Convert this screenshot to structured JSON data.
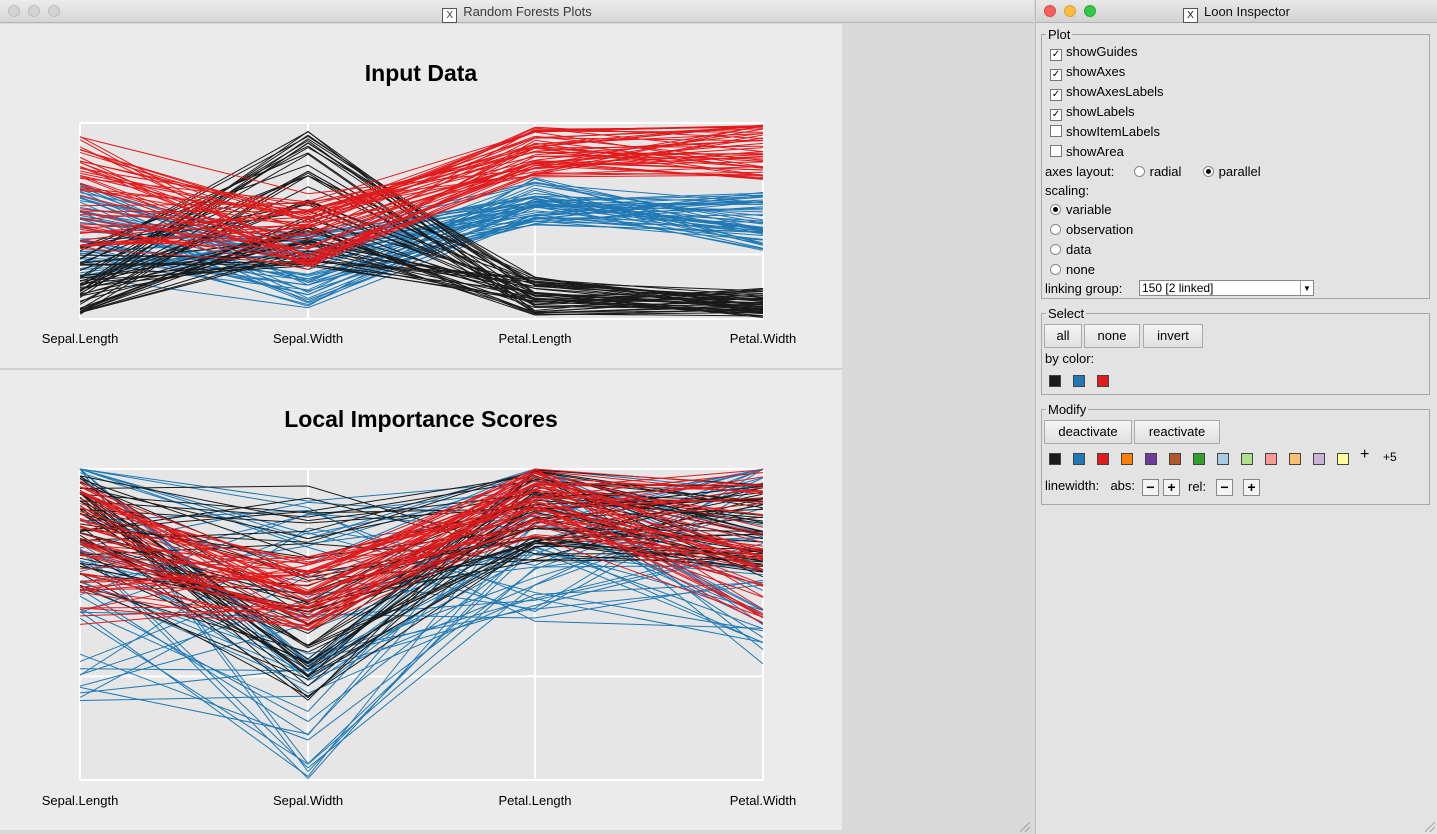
{
  "left_window": {
    "title": "Random Forests Plots",
    "top_plot": {
      "title": "Input Data",
      "axes": [
        "Sepal.Length",
        "Sepal.Width",
        "Petal.Length",
        "Petal.Width"
      ]
    },
    "bottom_plot": {
      "title": "Local Importance Scores",
      "axes": [
        "Sepal.Length",
        "Sepal.Width",
        "Petal.Length",
        "Petal.Width"
      ]
    }
  },
  "inspector": {
    "title": "Loon Inspector",
    "plot_group": {
      "label": "Plot",
      "checkboxes": [
        {
          "label": "showGuides",
          "checked": true
        },
        {
          "label": "showAxes",
          "checked": true
        },
        {
          "label": "showAxesLabels",
          "checked": true
        },
        {
          "label": "showLabels",
          "checked": true
        },
        {
          "label": "showItemLabels",
          "checked": false
        },
        {
          "label": "showArea",
          "checked": false
        }
      ],
      "axes_layout_label": "axes layout:",
      "axes_layout_options": [
        {
          "label": "radial",
          "selected": false
        },
        {
          "label": "parallel",
          "selected": true
        }
      ],
      "scaling_label": "scaling:",
      "scaling_options": [
        {
          "label": "variable",
          "selected": true
        },
        {
          "label": "observation",
          "selected": false
        },
        {
          "label": "data",
          "selected": false
        },
        {
          "label": "none",
          "selected": false
        }
      ],
      "linking_group_label": "linking group:",
      "linking_group_value": "150  [2 linked]"
    },
    "select_group": {
      "label": "Select",
      "buttons": [
        "all",
        "none",
        "invert"
      ],
      "by_color_label": "by color:",
      "colors": [
        "#1a1a1a",
        "#1f78b4",
        "#e31a1c"
      ]
    },
    "modify_group": {
      "label": "Modify",
      "buttons": [
        "deactivate",
        "reactivate"
      ],
      "colors": [
        "#1a1a1a",
        "#1f78b4",
        "#e31a1c",
        "#ff7f00",
        "#6a3d9a",
        "#b15928",
        "#33a02c",
        "#a6cee3",
        "#b2df8a",
        "#fb9a99",
        "#fdbf6f",
        "#cab2d6",
        "#ffff99"
      ],
      "more_label": "+5",
      "linewidth_label": "linewidth:",
      "abs_label": "abs:",
      "rel_label": "rel:"
    }
  },
  "series_colors": {
    "setosa": "#1a1a1a",
    "versicolor": "#1f78b4",
    "virginica": "#e31a1c"
  }
}
